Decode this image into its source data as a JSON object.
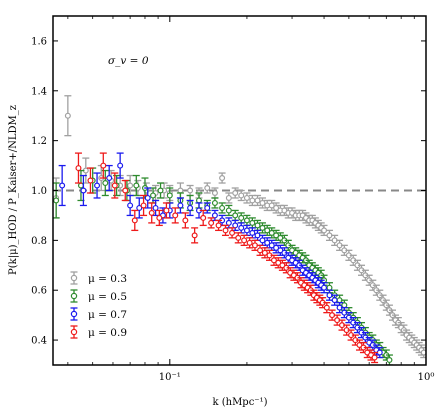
{
  "chart_data": {
    "type": "scatter",
    "x_scale": "log",
    "xlim": [
      0.035,
      1.0
    ],
    "ylim": [
      0.3,
      1.7
    ],
    "xlabel": "k (hMpc⁻¹)",
    "ylabel": "P(k|μ)_HOD / P_Kaiser+/NLDM_z",
    "x_ticks": [
      0.1,
      1.0
    ],
    "x_tick_labels": [
      "10⁻¹",
      "10⁰"
    ],
    "y_ticks": [
      0.4,
      0.6,
      0.8,
      1.0,
      1.2,
      1.4,
      1.6
    ],
    "y_tick_labels": [
      "0.4",
      "0.6",
      "0.8",
      "1.0",
      "1.2",
      "1.4",
      "1.6"
    ],
    "reference_line": {
      "y": 1.0,
      "style": "dashed",
      "color": "#888888"
    },
    "annotation": "σ_v = 0",
    "legend_position": "lower-left",
    "series": [
      {
        "name": "μ = 0.3",
        "color": "#a0a0a0",
        "x": [
          0.036,
          0.04,
          0.047,
          0.054,
          0.059,
          0.064,
          0.07,
          0.075,
          0.081,
          0.088,
          0.095,
          0.1,
          0.11,
          0.12,
          0.13,
          0.14,
          0.15,
          0.16,
          0.17,
          0.18,
          0.19,
          0.2,
          0.21,
          0.22,
          0.23,
          0.24,
          0.25,
          0.26,
          0.27,
          0.28,
          0.29,
          0.3,
          0.31,
          0.32,
          0.33,
          0.34,
          0.35,
          0.36,
          0.37,
          0.38,
          0.39,
          0.4,
          0.42,
          0.44,
          0.46,
          0.48,
          0.5,
          0.52,
          0.54,
          0.56,
          0.58,
          0.6,
          0.62,
          0.64,
          0.66,
          0.68,
          0.7,
          0.72,
          0.74,
          0.76,
          0.78,
          0.8,
          0.82,
          0.84,
          0.86,
          0.88,
          0.9,
          0.92,
          0.94,
          0.96,
          0.98
        ],
        "y": [
          0.97,
          1.3,
          1.08,
          1.05,
          1.04,
          1.02,
          1.02,
          1.01,
          1.0,
          0.99,
          1.0,
          0.99,
          1.0,
          1.0,
          0.99,
          1.01,
          0.99,
          1.05,
          0.97,
          0.99,
          0.98,
          0.97,
          0.96,
          0.96,
          0.95,
          0.94,
          0.94,
          0.93,
          0.92,
          0.92,
          0.91,
          0.91,
          0.9,
          0.9,
          0.9,
          0.89,
          0.88,
          0.88,
          0.87,
          0.86,
          0.85,
          0.84,
          0.82,
          0.8,
          0.78,
          0.76,
          0.74,
          0.72,
          0.7,
          0.68,
          0.66,
          0.64,
          0.62,
          0.6,
          0.58,
          0.56,
          0.54,
          0.52,
          0.5,
          0.48,
          0.47,
          0.45,
          0.44,
          0.42,
          0.41,
          0.4,
          0.39,
          0.38,
          0.37,
          0.36,
          0.35
        ],
        "yerr": [
          0.08,
          0.08,
          0.05,
          0.05,
          0.04,
          0.04,
          0.04,
          0.03,
          0.03,
          0.03,
          0.03,
          0.03,
          0.03,
          0.02,
          0.02,
          0.02,
          0.02,
          0.02,
          0.02,
          0.02,
          0.02,
          0.02,
          0.02,
          0.02,
          0.02,
          0.02,
          0.02,
          0.02,
          0.02,
          0.02,
          0.02,
          0.02,
          0.02,
          0.02,
          0.02,
          0.02,
          0.02,
          0.02,
          0.02,
          0.02,
          0.02,
          0.02,
          0.02,
          0.02,
          0.02,
          0.02,
          0.02,
          0.02,
          0.02,
          0.02,
          0.02,
          0.02,
          0.02,
          0.02,
          0.02,
          0.02,
          0.02,
          0.02,
          0.02,
          0.02,
          0.02,
          0.02,
          0.02,
          0.02,
          0.02,
          0.02,
          0.02,
          0.02,
          0.02,
          0.02,
          0.02
        ]
      },
      {
        "name": "μ = 0.5",
        "color": "#2e8b2e",
        "x": [
          0.036,
          0.045,
          0.05,
          0.056,
          0.062,
          0.068,
          0.074,
          0.08,
          0.086,
          0.092,
          0.1,
          0.11,
          0.12,
          0.13,
          0.14,
          0.15,
          0.16,
          0.17,
          0.18,
          0.19,
          0.2,
          0.21,
          0.22,
          0.23,
          0.24,
          0.25,
          0.26,
          0.27,
          0.28,
          0.29,
          0.3,
          0.31,
          0.32,
          0.33,
          0.34,
          0.35,
          0.36,
          0.37,
          0.38,
          0.39,
          0.4,
          0.42,
          0.44,
          0.46,
          0.48,
          0.5,
          0.52,
          0.54,
          0.56,
          0.58,
          0.6,
          0.62,
          0.64,
          0.66,
          0.68,
          0.7,
          0.72
        ],
        "y": [
          0.96,
          1.02,
          1.04,
          1.03,
          1.02,
          1.0,
          1.02,
          1.01,
          0.98,
          1.0,
          0.98,
          0.96,
          0.95,
          0.96,
          0.94,
          0.95,
          0.93,
          0.92,
          0.9,
          0.89,
          0.88,
          0.87,
          0.86,
          0.85,
          0.84,
          0.83,
          0.82,
          0.81,
          0.8,
          0.78,
          0.76,
          0.75,
          0.74,
          0.73,
          0.72,
          0.7,
          0.69,
          0.68,
          0.67,
          0.66,
          0.64,
          0.61,
          0.58,
          0.56,
          0.54,
          0.51,
          0.49,
          0.47,
          0.45,
          0.43,
          0.41,
          0.4,
          0.38,
          0.37,
          0.35,
          0.34,
          0.32
        ],
        "yerr": [
          0.07,
          0.06,
          0.05,
          0.05,
          0.04,
          0.04,
          0.04,
          0.04,
          0.03,
          0.03,
          0.03,
          0.03,
          0.03,
          0.03,
          0.02,
          0.02,
          0.02,
          0.02,
          0.02,
          0.02,
          0.02,
          0.02,
          0.02,
          0.02,
          0.02,
          0.02,
          0.02,
          0.02,
          0.02,
          0.02,
          0.02,
          0.02,
          0.02,
          0.02,
          0.02,
          0.02,
          0.02,
          0.02,
          0.02,
          0.02,
          0.02,
          0.02,
          0.02,
          0.02,
          0.02,
          0.02,
          0.02,
          0.02,
          0.02,
          0.02,
          0.02,
          0.02,
          0.02,
          0.02,
          0.02,
          0.02,
          0.02
        ]
      },
      {
        "name": "μ = 0.7",
        "color": "#1a1aee",
        "x": [
          0.038,
          0.046,
          0.052,
          0.058,
          0.064,
          0.07,
          0.076,
          0.082,
          0.088,
          0.094,
          0.1,
          0.11,
          0.12,
          0.13,
          0.14,
          0.15,
          0.16,
          0.17,
          0.18,
          0.19,
          0.2,
          0.21,
          0.22,
          0.23,
          0.24,
          0.25,
          0.26,
          0.27,
          0.28,
          0.29,
          0.3,
          0.31,
          0.32,
          0.33,
          0.34,
          0.35,
          0.36,
          0.37,
          0.38,
          0.39,
          0.4,
          0.42,
          0.44,
          0.46,
          0.48,
          0.5,
          0.52,
          0.54,
          0.56,
          0.58,
          0.6,
          0.62,
          0.64,
          0.66
        ],
        "y": [
          1.02,
          1.0,
          1.02,
          1.05,
          1.1,
          0.94,
          0.93,
          0.97,
          0.93,
          0.9,
          0.92,
          0.94,
          0.93,
          0.92,
          0.93,
          0.9,
          0.88,
          0.87,
          0.86,
          0.85,
          0.84,
          0.83,
          0.82,
          0.8,
          0.79,
          0.78,
          0.77,
          0.76,
          0.75,
          0.73,
          0.72,
          0.71,
          0.7,
          0.68,
          0.67,
          0.66,
          0.65,
          0.64,
          0.63,
          0.62,
          0.61,
          0.58,
          0.56,
          0.53,
          0.51,
          0.49,
          0.47,
          0.45,
          0.43,
          0.41,
          0.39,
          0.38,
          0.36,
          0.35
        ],
        "yerr": [
          0.08,
          0.06,
          0.05,
          0.05,
          0.05,
          0.04,
          0.04,
          0.04,
          0.03,
          0.03,
          0.03,
          0.03,
          0.03,
          0.03,
          0.02,
          0.02,
          0.02,
          0.02,
          0.02,
          0.02,
          0.02,
          0.02,
          0.02,
          0.02,
          0.02,
          0.02,
          0.02,
          0.02,
          0.02,
          0.02,
          0.02,
          0.02,
          0.02,
          0.02,
          0.02,
          0.02,
          0.02,
          0.02,
          0.02,
          0.02,
          0.02,
          0.02,
          0.02,
          0.02,
          0.02,
          0.02,
          0.02,
          0.02,
          0.02,
          0.02,
          0.02,
          0.02,
          0.02,
          0.02
        ]
      },
      {
        "name": "μ = 0.9",
        "color": "#ee1a1a",
        "x": [
          0.044,
          0.049,
          0.055,
          0.061,
          0.067,
          0.073,
          0.079,
          0.085,
          0.091,
          0.097,
          0.105,
          0.115,
          0.125,
          0.135,
          0.145,
          0.155,
          0.165,
          0.175,
          0.185,
          0.195,
          0.205,
          0.215,
          0.225,
          0.235,
          0.245,
          0.255,
          0.265,
          0.275,
          0.285,
          0.295,
          0.305,
          0.315,
          0.325,
          0.335,
          0.345,
          0.355,
          0.365,
          0.375,
          0.385,
          0.395,
          0.41,
          0.43,
          0.45,
          0.47,
          0.49,
          0.51,
          0.53,
          0.55,
          0.57,
          0.59,
          0.61,
          0.63
        ],
        "y": [
          1.09,
          1.04,
          1.1,
          1.02,
          1.0,
          0.88,
          0.94,
          0.91,
          0.89,
          0.92,
          0.9,
          0.88,
          0.82,
          0.89,
          0.87,
          0.86,
          0.84,
          0.83,
          0.81,
          0.8,
          0.79,
          0.78,
          0.76,
          0.75,
          0.74,
          0.72,
          0.71,
          0.7,
          0.69,
          0.67,
          0.66,
          0.65,
          0.63,
          0.62,
          0.61,
          0.6,
          0.58,
          0.57,
          0.56,
          0.55,
          0.53,
          0.5,
          0.48,
          0.46,
          0.44,
          0.42,
          0.4,
          0.38,
          0.37,
          0.35,
          0.34,
          0.33
        ],
        "yerr": [
          0.06,
          0.05,
          0.05,
          0.05,
          0.04,
          0.04,
          0.04,
          0.04,
          0.03,
          0.03,
          0.03,
          0.03,
          0.03,
          0.03,
          0.02,
          0.02,
          0.02,
          0.02,
          0.02,
          0.02,
          0.02,
          0.02,
          0.02,
          0.02,
          0.02,
          0.02,
          0.02,
          0.02,
          0.02,
          0.02,
          0.02,
          0.02,
          0.02,
          0.02,
          0.02,
          0.02,
          0.02,
          0.02,
          0.02,
          0.02,
          0.02,
          0.02,
          0.02,
          0.02,
          0.02,
          0.02,
          0.02,
          0.02,
          0.02,
          0.02,
          0.02,
          0.02
        ]
      }
    ]
  }
}
